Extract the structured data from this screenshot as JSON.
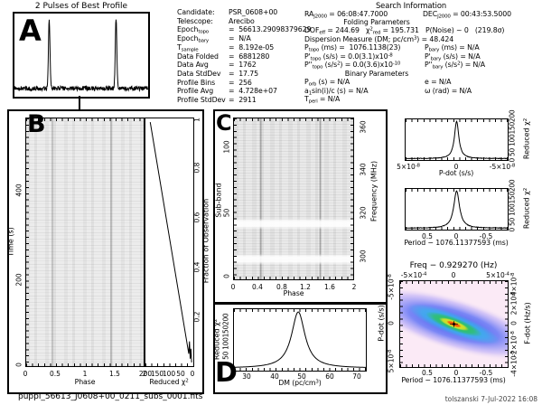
{
  "title": "2 Pulses of Best Profile",
  "letters": {
    "a": "A",
    "b": "B",
    "c": "C",
    "d": "D"
  },
  "info_left": {
    "rows": [
      {
        "label": "Candidate:",
        "value": "PSR_0608+00"
      },
      {
        "label": "Telescope:",
        "value": "Arecibo"
      },
      {
        "label": "Epoch<sub>topo</sub>",
        "value": "=&nbsp; 56613.29098379629"
      },
      {
        "label": "Epoch<sub>bary</sub>",
        "value": "=&nbsp; N/A"
      },
      {
        "label": "T<sub>sample</sub>",
        "value": "=&nbsp; 8.192e-05"
      },
      {
        "label": "Data Folded",
        "value": "=&nbsp; 6881280"
      },
      {
        "label": "Data Avg",
        "value": "=&nbsp; 1762"
      },
      {
        "label": "Data StdDev",
        "value": "=&nbsp; 17.75"
      },
      {
        "label": "Profile Bins",
        "value": "=&nbsp; 256"
      },
      {
        "label": "Profile Avg",
        "value": "=&nbsp; 4.728e+07"
      },
      {
        "label": "Profile StdDev",
        "value": "=&nbsp; 2911"
      }
    ]
  },
  "search": {
    "title": "Search Information",
    "ra": "RA<sub>J2000</sub> = 06:08:47.7000",
    "dec": "DEC<sub>J2000</sub> = 00:43:53.5000",
    "folding_header": "Folding Parameters",
    "dof_line": "DOF<sub>eff</sub> = 244.69&nbsp;&nbsp; χ<sup>2</sup><sub>red</sub> = 195.731&nbsp;&nbsp; P(Noise) ~ 0&nbsp;&nbsp;&nbsp;(219.8σ)",
    "dm_line": "Dispersion Measure (DM; pc/cm<sup>3</sup>) = 48.424",
    "p_topo": "P<sub>topo</sub> (ms) =&nbsp; 1076.1138(23)",
    "p_bary": "P<sub>bary</sub> (ms) = N/A",
    "pd_topo": "P'<sub>topo</sub> (s/s) = 0.0(3.1)x10<sup>-8</sup>",
    "pd_bary": "P'<sub>bary</sub> (s/s) = N/A",
    "pdd_topo": "P''<sub>topo</sub> (s/s<sup>2</sup>) = 0.0(3.6)x10<sup>-10</sup>",
    "pdd_bary": "P''<sub>bary</sub> (s/s<sup>2</sup>) = N/A",
    "binary_header": "Binary Parameters",
    "porb": "P<sub>orb</sub> (s) = N/A",
    "ecc": "e = N/A",
    "asini": "a<sub>1</sub>sin(i)/c (s) = N/A",
    "omega": "ω (rad) = N/A",
    "tperi": "T<sub>peri</sub> = N/A"
  },
  "panelB": {
    "ylabel": "Time (s)",
    "yticks": [
      "400",
      "200",
      "0"
    ],
    "xticks": [
      "0",
      "0.5",
      "1",
      "1.5",
      "2"
    ],
    "xlabel": "Phase",
    "chi2_ticks": [
      "200",
      "150",
      "100",
      "50",
      "0"
    ],
    "chi2_xlabel": "Reduced χ<sup>2</sup>",
    "fraction_ticks": [
      "1",
      "0.8",
      "0.6",
      "0.4",
      "0.2"
    ],
    "fraction_label": "Fraction of Observation"
  },
  "panelC": {
    "left_label": "Sub-band",
    "left_ticks": [
      "100",
      "50",
      "0"
    ],
    "right_label": "Frequency (MHz)",
    "right_ticks": [
      "360",
      "340",
      "320",
      "300"
    ],
    "xticks": [
      "0",
      "0.4",
      "0.8",
      "1.2",
      "1.6",
      "2"
    ],
    "xlabel": "Phase"
  },
  "panelD": {
    "ylabel": "Reduced χ<sup>2</sup>",
    "yticks_text": "0 50 100150200",
    "xticks": [
      "30",
      "40",
      "50",
      "60",
      "70"
    ],
    "xlabel": "DM (pc/cm<sup>3</sup>)"
  },
  "pdot_panel": {
    "xticks": [
      "5×10<sup>-8</sup>",
      "0",
      "-5×10<sup>-8</sup>"
    ],
    "xlabel": "P-dot (s/s)",
    "right_ticks_text": "0 50 100150200",
    "right_label": "Reduced χ<sup>2</sup>"
  },
  "period_panel": {
    "xticks": [
      "0.5",
      "0",
      "-0.5"
    ],
    "xlabel": "Period − 1076.11377593 (ms)",
    "right_ticks_text": "0 50 100150200",
    "right_label": "Reduced χ<sup>2</sup>"
  },
  "colormap": {
    "title": "Freq − 0.929270 (Hz)",
    "top_ticks": [
      "-5×10<sup>-4</sup>",
      "0",
      "5×10<sup>-4</sup>"
    ],
    "left_label": "P-dot (s/s)",
    "left_ticks": [
      "-5×10<sup>-8</sup>",
      "0",
      "5×10<sup>-8</sup>"
    ],
    "right_label": "F-dot (Hz/s)",
    "right_ticks": [
      "4×10<sup>-8</sup>",
      "2×10<sup>-8</sup>",
      "0",
      "-2×10<sup>-8</sup>",
      "-4×10<sup>-8</sup>"
    ],
    "bottom_ticks": [
      "0.5",
      "0",
      "-0.5"
    ],
    "bottom_label": "Period − 1076.11377593 (ms)"
  },
  "footer": {
    "filename": "puppi_56613_J0608+00_0211_subs_0001.fits",
    "credit": "tolszanski  7-Jul-2022 16:08"
  },
  "curves": {
    "profileA": {
      "kind": "pulses",
      "n": 400,
      "base": 0.1,
      "noise": 0.055,
      "amp": 0.84,
      "width": 0.008,
      "pulses": [
        0.26,
        0.76
      ]
    },
    "chi2frac": {
      "kind": "poly",
      "pts": [
        [
          0.1,
          0.985
        ],
        [
          0.905,
          0.05
        ],
        [
          0.92,
          0.1
        ],
        [
          0.935,
          0.03
        ],
        [
          0.95,
          0.07
        ],
        [
          0.965,
          0.015
        ]
      ]
    },
    "dm": {
      "kind": "peak",
      "n": 240,
      "center": 0.4875,
      "hw": 0.062,
      "base": 0.04,
      "top": 0.955,
      "noise": 0
    },
    "pdot": {
      "kind": "peak",
      "n": 240,
      "center": 0.5,
      "hw": 0.026,
      "base": 0.035,
      "top": 0.95,
      "noise": 0.012
    },
    "period": {
      "kind": "peak",
      "n": 240,
      "center": 0.5,
      "hw": 0.034,
      "base": 0.035,
      "top": 0.95,
      "noise": 0.012
    }
  },
  "chart_data": [
    {
      "id": "best_profile",
      "type": "line",
      "title": "2 Pulses of Best Profile",
      "x_range_phase": [
        0,
        2
      ],
      "pulse_phases": [
        0.45,
        1.45
      ],
      "profile_bins": 256,
      "profile_avg": 47280000.0,
      "profile_stddev": 2911
    },
    {
      "id": "time_vs_phase",
      "type": "heatmap",
      "xlabel": "Phase",
      "ylabel": "Time (s)",
      "x_range": [
        0,
        2
      ],
      "y_range": [
        0,
        560
      ],
      "y_ticks": [
        0,
        200,
        400
      ],
      "x_ticks": [
        0,
        0.5,
        1,
        1.5,
        2
      ],
      "pulse_phases": [
        0.45,
        1.45
      ]
    },
    {
      "id": "chi2_vs_fraction",
      "type": "line",
      "xlabel": "Reduced χ²",
      "ylabel": "Fraction of Observation",
      "x_range": [
        220,
        0
      ],
      "y_range": [
        0,
        1
      ],
      "x_ticks": [
        200,
        150,
        100,
        50,
        0
      ],
      "y_ticks": [
        0.2,
        0.4,
        0.6,
        0.8,
        1
      ],
      "points": [
        [
          195.731,
          1.0
        ],
        [
          0,
          0
        ]
      ]
    },
    {
      "id": "subband_vs_phase",
      "type": "heatmap",
      "xlabel": "Phase",
      "ylabel_left": "Sub-band",
      "ylabel_right": "Frequency (MHz)",
      "x_range": [
        0,
        2
      ],
      "x_ticks": [
        0,
        0.4,
        0.8,
        1.2,
        1.6,
        2
      ],
      "subband_ticks": [
        0,
        50,
        100
      ],
      "freq_ticks_mhz": [
        300,
        320,
        340,
        360
      ],
      "pulse_phases": [
        0.45,
        1.45
      ]
    },
    {
      "id": "chi2_vs_dm",
      "type": "line",
      "xlabel": "DM (pc/cm³)",
      "ylabel": "Reduced χ²",
      "x_range": [
        25,
        73
      ],
      "y_range": [
        0,
        220
      ],
      "x_ticks": [
        30,
        40,
        50,
        60,
        70
      ],
      "y_ticks": [
        0,
        50,
        100,
        150,
        200
      ],
      "peak_dm": 48.424,
      "peak_chi2": 195.7
    },
    {
      "id": "chi2_vs_pdot",
      "type": "line",
      "xlabel": "P-dot (s/s)",
      "ylabel": "Reduced χ²",
      "x_range": [
        5e-08,
        -5e-08
      ],
      "x_ticks": [
        5e-08,
        0,
        -5e-08
      ],
      "y_ticks": [
        0,
        50,
        100,
        150,
        200
      ],
      "peak_pdot": 0,
      "peak_chi2": 195.7
    },
    {
      "id": "chi2_vs_period",
      "type": "line",
      "xlabel": "Period − 1076.11377593 (ms)",
      "ylabel": "Reduced χ²",
      "x_range": [
        0.9,
        -0.9
      ],
      "x_ticks": [
        0.5,
        0,
        -0.5
      ],
      "y_ticks": [
        0,
        50,
        100,
        150,
        200
      ],
      "peak_offset": 0,
      "peak_chi2": 195.7
    },
    {
      "id": "period_pdot_chi2_map",
      "type": "heatmap",
      "title": "Freq − 0.929270 (Hz)",
      "xlabel_bottom": "Period − 1076.11377593 (ms)",
      "top_freq_ticks_hz": [
        -0.0005,
        0,
        0.0005
      ],
      "bottom_ticks_ms": [
        0.5,
        0,
        -0.5
      ],
      "ylabel_left": "P-dot (s/s)",
      "pdot_ticks": [
        -5e-08,
        0,
        5e-08
      ],
      "ylabel_right": "F-dot (Hz/s)",
      "fdot_ticks": [
        4e-08,
        2e-08,
        0,
        -2e-08,
        -4e-08
      ],
      "best_point": [
        0,
        0
      ],
      "colormap": "pale pink → blue diagonal band → green → yellow → red core with black dot"
    }
  ]
}
